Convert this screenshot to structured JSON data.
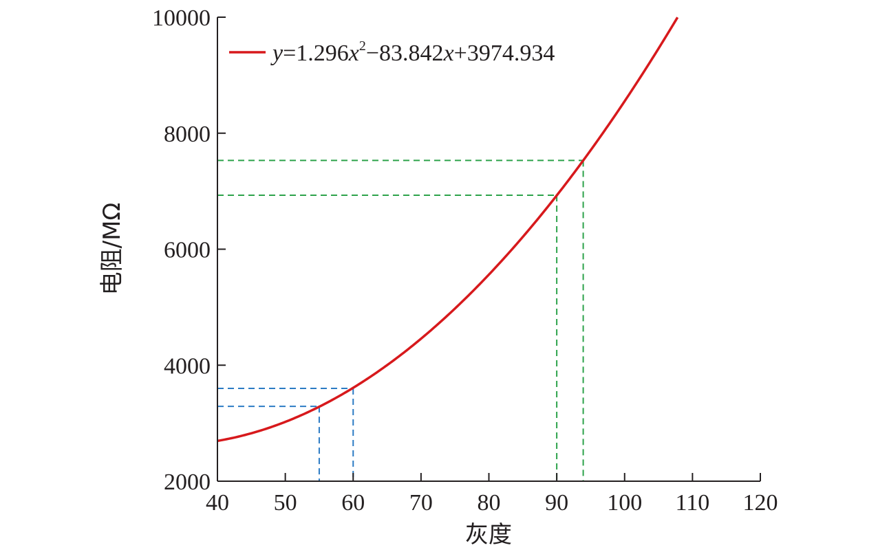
{
  "chart_data": {
    "type": "line",
    "title": "",
    "xlabel": "灰度",
    "ylabel": "电阻/MΩ",
    "xlim": [
      40,
      120
    ],
    "ylim": [
      2000,
      10000
    ],
    "x_ticks": [
      40,
      50,
      60,
      70,
      80,
      90,
      100,
      110,
      120
    ],
    "y_ticks": [
      2000,
      4000,
      6000,
      8000,
      10000
    ],
    "grid": false,
    "legend": {
      "placement": "top-left",
      "parts": [
        "y",
        "=1.296",
        "x",
        "2",
        "−83.842",
        "x",
        "+3974.934"
      ]
    },
    "series": [
      {
        "kind": "fitted-quadratic",
        "color": "#d7191c",
        "coefficients": {
          "a": 1.296,
          "b": -83.842,
          "c": 3974.934
        },
        "x_range": [
          40,
          107.8
        ]
      }
    ],
    "reference_lines": [
      {
        "x": 55,
        "y": 3290,
        "color": "#2b7bc4"
      },
      {
        "x": 60,
        "y": 3600,
        "color": "#2b7bc4"
      },
      {
        "x": 90,
        "y": 6930,
        "color": "#2ca24a"
      },
      {
        "x": 93.9,
        "y": 7530,
        "color": "#2ca24a"
      }
    ]
  }
}
